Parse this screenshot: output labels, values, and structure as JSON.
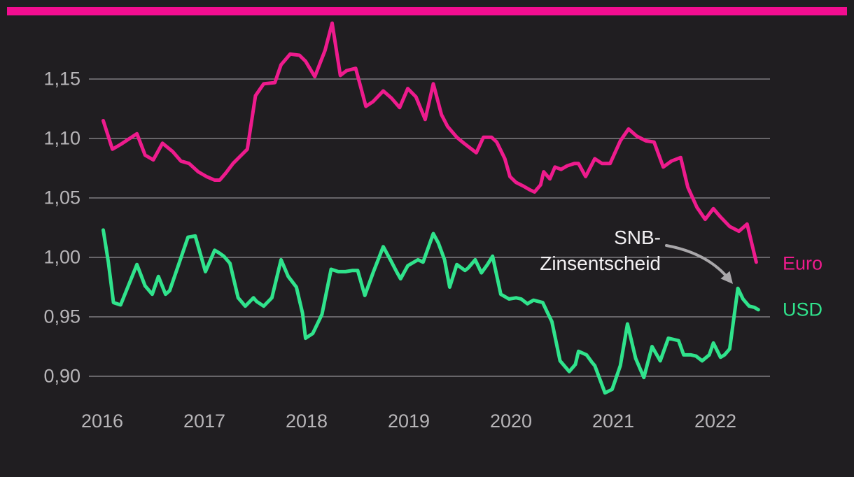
{
  "page": {
    "background_color": "#201e21",
    "accent_bar_color": "#f20d90"
  },
  "labels": {
    "annotation_line1": "SNB-",
    "annotation_line2": "Zinsentscheid"
  },
  "chart_data": {
    "type": "line",
    "title": "",
    "xlabel": "",
    "ylabel": "",
    "grid": true,
    "xlim": [
      2015.87,
      2022.53
    ],
    "ylim": [
      0.878,
      1.21
    ],
    "y_ticks": [
      {
        "label": "1,15",
        "value": 1.15
      },
      {
        "label": "1,10",
        "value": 1.1
      },
      {
        "label": "1,05",
        "value": 1.05
      },
      {
        "label": "1,00",
        "value": 1.0
      },
      {
        "label": "0,95",
        "value": 0.95
      },
      {
        "label": "0,90",
        "value": 0.9
      }
    ],
    "x_ticks": [
      {
        "label": "2016",
        "value": 2016
      },
      {
        "label": "2017",
        "value": 2017
      },
      {
        "label": "2018",
        "value": 2018
      },
      {
        "label": "2019",
        "value": 2019
      },
      {
        "label": "2020",
        "value": 2020
      },
      {
        "label": "2021",
        "value": 2021
      },
      {
        "label": "2022",
        "value": 2022
      }
    ],
    "annotation": {
      "text": "SNB-Zinsentscheid",
      "target_year": 2022.22,
      "target_value": 0.974,
      "arrow_color": "#a9a7aa"
    },
    "series": [
      {
        "name": "Euro",
        "color": "#ee1b8d",
        "points": [
          [
            2016.01,
            1.115
          ],
          [
            2016.1,
            1.091
          ],
          [
            2016.18,
            1.095
          ],
          [
            2016.34,
            1.104
          ],
          [
            2016.42,
            1.086
          ],
          [
            2016.5,
            1.082
          ],
          [
            2016.59,
            1.096
          ],
          [
            2016.69,
            1.089
          ],
          [
            2016.77,
            1.081
          ],
          [
            2016.85,
            1.079
          ],
          [
            2016.94,
            1.072
          ],
          [
            2017.02,
            1.068
          ],
          [
            2017.1,
            1.065
          ],
          [
            2017.15,
            1.065
          ],
          [
            2017.21,
            1.071
          ],
          [
            2017.28,
            1.079
          ],
          [
            2017.35,
            1.085
          ],
          [
            2017.42,
            1.091
          ],
          [
            2017.5,
            1.136
          ],
          [
            2017.58,
            1.146
          ],
          [
            2017.69,
            1.147
          ],
          [
            2017.75,
            1.162
          ],
          [
            2017.84,
            1.171
          ],
          [
            2017.93,
            1.17
          ],
          [
            2017.99,
            1.165
          ],
          [
            2018.08,
            1.152
          ],
          [
            2018.18,
            1.174
          ],
          [
            2018.25,
            1.197
          ],
          [
            2018.33,
            1.153
          ],
          [
            2018.39,
            1.157
          ],
          [
            2018.48,
            1.159
          ],
          [
            2018.54,
            1.14
          ],
          [
            2018.58,
            1.127
          ],
          [
            2018.65,
            1.131
          ],
          [
            2018.75,
            1.14
          ],
          [
            2018.83,
            1.134
          ],
          [
            2018.91,
            1.126
          ],
          [
            2018.99,
            1.142
          ],
          [
            2019.07,
            1.135
          ],
          [
            2019.16,
            1.116
          ],
          [
            2019.24,
            1.146
          ],
          [
            2019.32,
            1.12
          ],
          [
            2019.38,
            1.11
          ],
          [
            2019.47,
            1.101
          ],
          [
            2019.54,
            1.096
          ],
          [
            2019.6,
            1.092
          ],
          [
            2019.66,
            1.088
          ],
          [
            2019.73,
            1.101
          ],
          [
            2019.81,
            1.101
          ],
          [
            2019.86,
            1.097
          ],
          [
            2019.94,
            1.083
          ],
          [
            2019.99,
            1.068
          ],
          [
            2020.05,
            1.063
          ],
          [
            2020.12,
            1.06
          ],
          [
            2020.18,
            1.057
          ],
          [
            2020.23,
            1.055
          ],
          [
            2020.29,
            1.061
          ],
          [
            2020.32,
            1.072
          ],
          [
            2020.38,
            1.066
          ],
          [
            2020.43,
            1.076
          ],
          [
            2020.49,
            1.074
          ],
          [
            2020.55,
            1.077
          ],
          [
            2020.62,
            1.079
          ],
          [
            2020.66,
            1.079
          ],
          [
            2020.73,
            1.068
          ],
          [
            2020.82,
            1.083
          ],
          [
            2020.89,
            1.079
          ],
          [
            2020.97,
            1.079
          ],
          [
            2021.07,
            1.098
          ],
          [
            2021.15,
            1.108
          ],
          [
            2021.23,
            1.102
          ],
          [
            2021.32,
            1.098
          ],
          [
            2021.4,
            1.097
          ],
          [
            2021.49,
            1.076
          ],
          [
            2021.57,
            1.081
          ],
          [
            2021.66,
            1.084
          ],
          [
            2021.73,
            1.059
          ],
          [
            2021.82,
            1.042
          ],
          [
            2021.9,
            1.032
          ],
          [
            2021.98,
            1.041
          ],
          [
            2022.05,
            1.034
          ],
          [
            2022.14,
            1.026
          ],
          [
            2022.23,
            1.022
          ],
          [
            2022.31,
            1.028
          ],
          [
            2022.4,
            0.996
          ]
        ]
      },
      {
        "name": "USD",
        "color": "#30e38c",
        "points": [
          [
            2016.01,
            1.023
          ],
          [
            2016.06,
            0.996
          ],
          [
            2016.11,
            0.962
          ],
          [
            2016.18,
            0.96
          ],
          [
            2016.34,
            0.994
          ],
          [
            2016.42,
            0.976
          ],
          [
            2016.49,
            0.969
          ],
          [
            2016.55,
            0.984
          ],
          [
            2016.62,
            0.969
          ],
          [
            2016.66,
            0.972
          ],
          [
            2016.84,
            1.017
          ],
          [
            2016.91,
            1.018
          ],
          [
            2017.01,
            0.988
          ],
          [
            2017.1,
            1.006
          ],
          [
            2017.14,
            1.004
          ],
          [
            2017.19,
            1.001
          ],
          [
            2017.25,
            0.995
          ],
          [
            2017.33,
            0.966
          ],
          [
            2017.4,
            0.959
          ],
          [
            2017.48,
            0.966
          ],
          [
            2017.51,
            0.963
          ],
          [
            2017.58,
            0.959
          ],
          [
            2017.66,
            0.966
          ],
          [
            2017.75,
            0.998
          ],
          [
            2017.82,
            0.984
          ],
          [
            2017.9,
            0.975
          ],
          [
            2017.96,
            0.953
          ],
          [
            2017.99,
            0.932
          ],
          [
            2018.06,
            0.936
          ],
          [
            2018.15,
            0.952
          ],
          [
            2018.24,
            0.99
          ],
          [
            2018.31,
            0.988
          ],
          [
            2018.38,
            0.988
          ],
          [
            2018.45,
            0.989
          ],
          [
            2018.5,
            0.989
          ],
          [
            2018.57,
            0.968
          ],
          [
            2018.65,
            0.987
          ],
          [
            2018.75,
            1.009
          ],
          [
            2018.82,
            0.998
          ],
          [
            2018.88,
            0.988
          ],
          [
            2018.92,
            0.982
          ],
          [
            2018.99,
            0.993
          ],
          [
            2019.09,
            0.998
          ],
          [
            2019.14,
            0.996
          ],
          [
            2019.24,
            1.02
          ],
          [
            2019.29,
            1.012
          ],
          [
            2019.35,
            0.998
          ],
          [
            2019.4,
            0.975
          ],
          [
            2019.47,
            0.994
          ],
          [
            2019.55,
            0.989
          ],
          [
            2019.58,
            0.991
          ],
          [
            2019.65,
            0.998
          ],
          [
            2019.71,
            0.987
          ],
          [
            2019.77,
            0.994
          ],
          [
            2019.82,
            1.001
          ],
          [
            2019.9,
            0.969
          ],
          [
            2019.98,
            0.965
          ],
          [
            2020.05,
            0.966
          ],
          [
            2020.1,
            0.965
          ],
          [
            2020.16,
            0.961
          ],
          [
            2020.22,
            0.964
          ],
          [
            2020.31,
            0.962
          ],
          [
            2020.36,
            0.953
          ],
          [
            2020.4,
            0.946
          ],
          [
            2020.48,
            0.913
          ],
          [
            2020.57,
            0.904
          ],
          [
            2020.63,
            0.91
          ],
          [
            2020.66,
            0.921
          ],
          [
            2020.74,
            0.918
          ],
          [
            2020.79,
            0.912
          ],
          [
            2020.82,
            0.909
          ],
          [
            2020.92,
            0.886
          ],
          [
            2020.99,
            0.889
          ],
          [
            2021.07,
            0.909
          ],
          [
            2021.14,
            0.944
          ],
          [
            2021.22,
            0.915
          ],
          [
            2021.3,
            0.899
          ],
          [
            2021.38,
            0.925
          ],
          [
            2021.46,
            0.913
          ],
          [
            2021.54,
            0.932
          ],
          [
            2021.64,
            0.93
          ],
          [
            2021.69,
            0.918
          ],
          [
            2021.76,
            0.918
          ],
          [
            2021.81,
            0.917
          ],
          [
            2021.87,
            0.913
          ],
          [
            2021.94,
            0.918
          ],
          [
            2021.98,
            0.928
          ],
          [
            2022.05,
            0.916
          ],
          [
            2022.09,
            0.918
          ],
          [
            2022.14,
            0.923
          ],
          [
            2022.22,
            0.974
          ],
          [
            2022.27,
            0.965
          ],
          [
            2022.33,
            0.959
          ],
          [
            2022.38,
            0.958
          ],
          [
            2022.42,
            0.956
          ]
        ]
      }
    ]
  }
}
